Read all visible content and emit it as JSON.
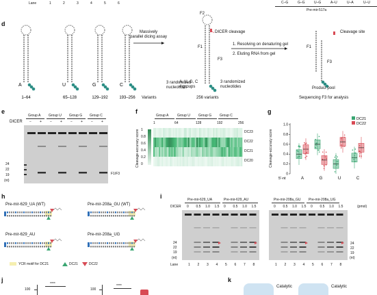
{
  "top": {
    "lane_label": "Lane",
    "lanes": [
      "1",
      "2",
      "3",
      "4",
      "5",
      "6"
    ],
    "pairs": [
      "C–G",
      "G–G",
      "U–G",
      "A–U",
      "U–A",
      "U–U"
    ],
    "caption": "Pre-mir-517a"
  },
  "d": {
    "label": "d",
    "variants": [
      "A",
      "U",
      "G",
      "C"
    ],
    "ranges": [
      "1–64",
      "65–128",
      "129–192",
      "193–256"
    ],
    "variants_text": "Variants",
    "randomized_left": "3 randomized\nnucleotides",
    "arrow1": "Massively\nparallel dicing assay",
    "F2": "F2",
    "F1": "F1",
    "F3": "F3",
    "dicer_cleavage": "DICER cleavage",
    "groups_text": "A, U, G, C\n4 groups",
    "randomized_mid": "3 randomized\nnucleotides",
    "variants256": "256 variants",
    "step1": "1. Resolving on denaturing  gel",
    "step2": "2. Eluting RNA from gel",
    "cleavage_site": "Cleavage site",
    "F1b": "F1",
    "F3b": "F3",
    "product_pool": "Product pool",
    "sequencing": "Sequencing F3 for analysis"
  },
  "e": {
    "label": "e",
    "groups": [
      "Group A",
      "Group U",
      "Group G",
      "Group C"
    ],
    "dicer": "DICER",
    "signs": [
      "−",
      "+",
      "−",
      "+",
      "−",
      "+",
      "−",
      "+"
    ],
    "sizes": [
      "24",
      "22",
      "19"
    ],
    "unit": "(nt)",
    "f1f3": "F1/F3"
  },
  "f": {
    "label": "f",
    "groups": [
      "Group A",
      "Group U",
      "Group G",
      "Group C"
    ],
    "ticks": [
      "1",
      "64",
      "128",
      "192",
      "256"
    ],
    "ylabel": "Cleavage-accuracy score",
    "scale": [
      "1",
      "0.8",
      "0.6",
      "0.4",
      "0.2",
      "0"
    ],
    "rows": [
      "DC23",
      "DC22",
      "DC21",
      "DC20"
    ]
  },
  "g": {
    "label": "g",
    "ylabel": "Cleavage-accuracy score",
    "yticks": [
      "1.0",
      "0.8",
      "0.6",
      "0.4",
      "0.2",
      "0"
    ],
    "legend": [
      "DC21",
      "DC22"
    ],
    "xlabel": "5′-nt",
    "categories": [
      "A",
      "G",
      "U",
      "C"
    ],
    "colors": {
      "dc21": "#3aa672",
      "dc22": "#d84b55"
    }
  },
  "chart_data": {
    "type": "box",
    "ylabel": "Cleavage-accuracy score",
    "ylim": [
      0,
      1.0
    ],
    "categories": [
      "A",
      "G",
      "U",
      "C"
    ],
    "series": [
      {
        "name": "DC21",
        "medians": [
          0.4,
          0.6,
          0.2,
          0.33
        ]
      },
      {
        "name": "DC22",
        "medians": [
          0.5,
          0.28,
          0.65,
          0.53
        ]
      }
    ]
  },
  "h": {
    "label": "h",
    "titles": [
      "Pre-mir-629_UA (WT)",
      "Pre-mir-208a_GU (WT)",
      "Pre-mir-629_AU",
      "Pre-mir-208a_UG"
    ],
    "legend_ycr": "YCR motif for DC21",
    "legend_dc21": "DC21",
    "legend_dc22": "DC22"
  },
  "i": {
    "label": "i",
    "titles": [
      "Pre-mir-629_UA",
      "Pre-mir-629_AU",
      "Pre-mir-208a_GU",
      "Pre-mir-208a_UG"
    ],
    "dicer": "DICER",
    "conc": [
      "0",
      "0.5",
      "1.0",
      "1.5",
      "0",
      "0.5",
      "1.0",
      "1.5"
    ],
    "conc2": [
      "0",
      "0.5",
      "1.0",
      "1.5",
      "0",
      "0.5",
      "1.0",
      "1.5"
    ],
    "unit": "(pmol)",
    "sizes": [
      "24",
      "22",
      "19"
    ],
    "sizes_right": [
      "24",
      "22",
      "19"
    ],
    "nt": "(nt)",
    "lane": "Lane",
    "lanes": [
      "1",
      "2",
      "3",
      "4",
      "5",
      "6",
      "7",
      "8"
    ],
    "lanes2": [
      "1",
      "2",
      "3",
      "4",
      "5",
      "6",
      "7",
      "8"
    ]
  },
  "j": {
    "label": "j",
    "y100a": "100",
    "y100b": "100",
    "sig": "****"
  },
  "k": {
    "label": "k",
    "catalytic1": "Catalytic",
    "catalytic2": "Catalytic"
  }
}
